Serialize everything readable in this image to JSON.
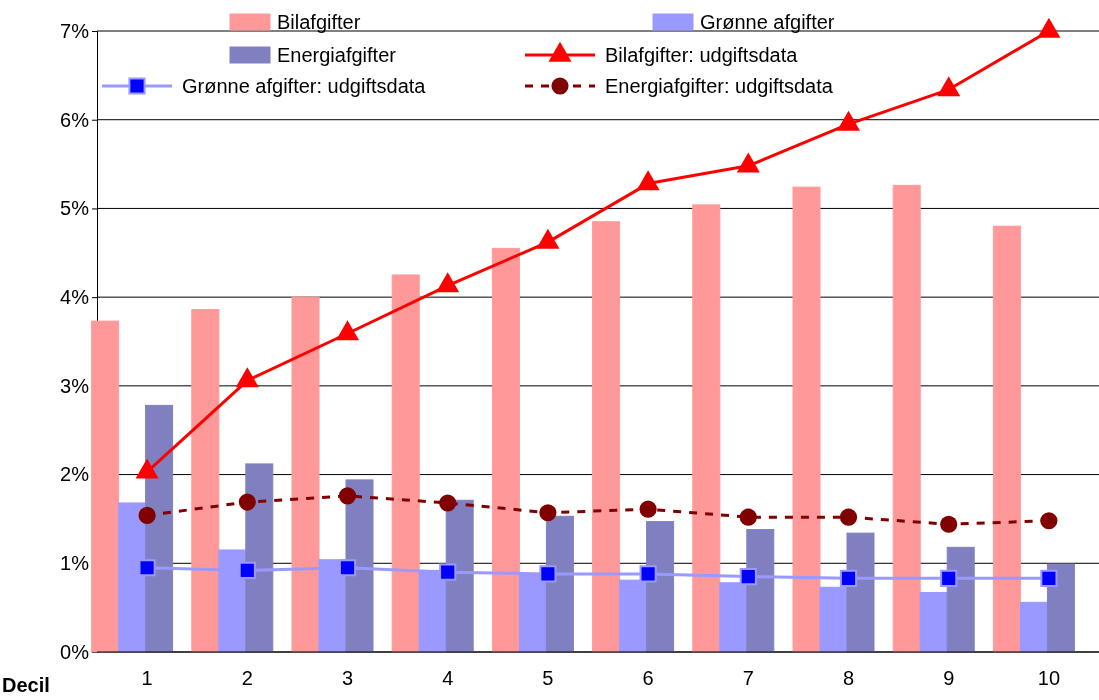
{
  "chart_data": {
    "type": "bar",
    "xlabel": "Decil",
    "categories": [
      "1",
      "2",
      "3",
      "4",
      "5",
      "6",
      "7",
      "8",
      "9",
      "10"
    ],
    "ylim": [
      0,
      7
    ],
    "yticks": [
      {
        "value": 0,
        "label": "0%"
      },
      {
        "value": 1,
        "label": "1%"
      },
      {
        "value": 2,
        "label": "2%"
      },
      {
        "value": 3,
        "label": "3%"
      },
      {
        "value": 4,
        "label": "4%"
      },
      {
        "value": 5,
        "label": "5%"
      },
      {
        "value": 6,
        "label": "6%"
      },
      {
        "value": 7,
        "label": "7%"
      }
    ],
    "grid": "y",
    "legend": "top",
    "series": [
      {
        "name": "Bilafgifter",
        "color": "#ff9999",
        "values": [
          3.73,
          3.86,
          4.0,
          4.25,
          4.55,
          4.85,
          5.04,
          5.24,
          5.26,
          4.8
        ]
      },
      {
        "name": "Grønne afgifter",
        "color": "#9999ff",
        "values": [
          1.68,
          1.15,
          1.04,
          0.92,
          0.87,
          0.81,
          0.78,
          0.73,
          0.67,
          0.56
        ]
      },
      {
        "name": "Energiafgifter",
        "color": "#8080c0",
        "values": [
          2.78,
          2.12,
          1.94,
          1.71,
          1.53,
          1.47,
          1.38,
          1.34,
          1.18,
          0.99
        ]
      },
      {
        "name": "Bilafgifter: udgiftsdata",
        "type": "line",
        "color": "#ff0000",
        "marker": "triangle",
        "line_style": "solid",
        "values": [
          2.03,
          3.06,
          3.59,
          4.13,
          4.62,
          5.28,
          5.48,
          5.95,
          6.34,
          7.0
        ]
      },
      {
        "name": "Grønne afgifter: udgiftsdata",
        "type": "line",
        "color": "#9999ff",
        "marker": "square",
        "line_style": "solid",
        "values": [
          0.95,
          0.92,
          0.95,
          0.9,
          0.88,
          0.88,
          0.85,
          0.83,
          0.83,
          0.83
        ]
      },
      {
        "name": "Energiafgifter: udgiftsdata",
        "type": "line",
        "color": "#800000",
        "marker": "circle",
        "line_style": "dashed",
        "values": [
          1.54,
          1.69,
          1.76,
          1.68,
          1.57,
          1.61,
          1.52,
          1.52,
          1.44,
          1.48
        ]
      }
    ]
  }
}
